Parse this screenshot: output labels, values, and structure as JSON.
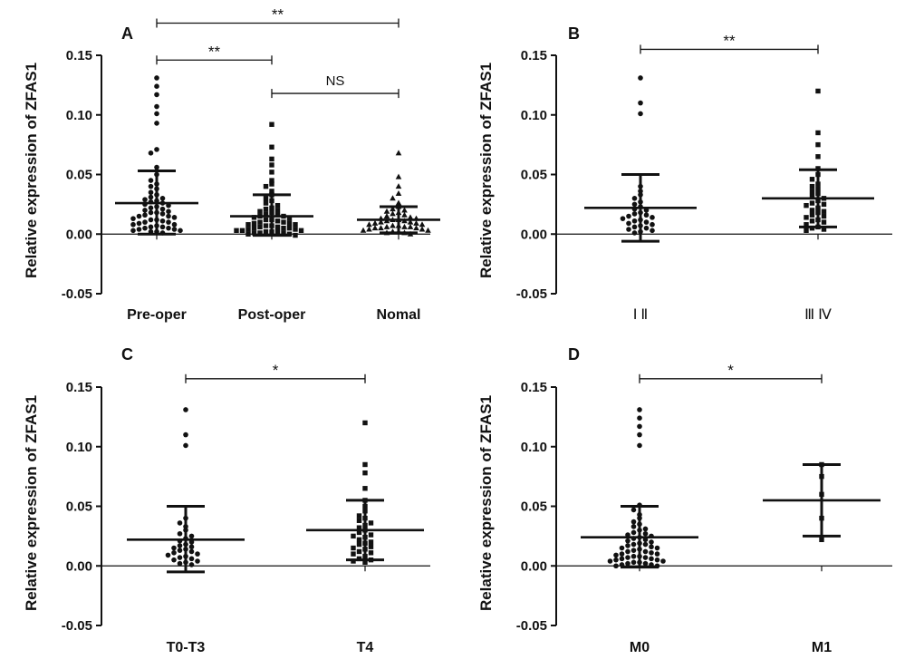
{
  "colors": {
    "ink": "#111111",
    "background": "#ffffff"
  },
  "chart_data": [
    {
      "panel": "A",
      "type": "scatter",
      "ylabel": "Relative expression of ZFAS1",
      "ylim": [
        -0.05,
        0.15
      ],
      "yticks": [
        -0.05,
        0.0,
        0.05,
        0.1,
        0.15
      ],
      "ytick_labels": [
        "-0.05",
        "0.00",
        "0.05",
        "0.10",
        "0.15"
      ],
      "groups": [
        {
          "label": "Pre-oper",
          "marker": "circle",
          "mean": 0.026,
          "err_low": 0.0,
          "err_high": 0.053,
          "values": [
            0.131,
            0.124,
            0.117,
            0.107,
            0.101,
            0.093,
            0.071,
            0.068,
            0.056,
            0.05,
            0.045,
            0.042,
            0.04,
            0.038,
            0.035,
            0.033,
            0.031,
            0.03,
            0.029,
            0.028,
            0.027,
            0.026,
            0.025,
            0.024,
            0.023,
            0.022,
            0.021,
            0.02,
            0.019,
            0.018,
            0.018,
            0.017,
            0.016,
            0.015,
            0.015,
            0.014,
            0.013,
            0.012,
            0.012,
            0.011,
            0.01,
            0.01,
            0.009,
            0.008,
            0.008,
            0.007,
            0.006,
            0.006,
            0.005,
            0.005,
            0.004,
            0.004,
            0.003,
            0.003,
            0.002,
            0.002,
            0.001
          ]
        },
        {
          "label": "Post-oper",
          "marker": "square",
          "mean": 0.015,
          "err_low": -0.001,
          "err_high": 0.033,
          "values": [
            0.092,
            0.073,
            0.063,
            0.058,
            0.052,
            0.045,
            0.042,
            0.04,
            0.036,
            0.033,
            0.03,
            0.028,
            0.026,
            0.024,
            0.022,
            0.021,
            0.02,
            0.019,
            0.018,
            0.017,
            0.016,
            0.015,
            0.015,
            0.014,
            0.013,
            0.012,
            0.012,
            0.011,
            0.01,
            0.01,
            0.009,
            0.009,
            0.008,
            0.008,
            0.007,
            0.007,
            0.006,
            0.006,
            0.005,
            0.005,
            0.005,
            0.004,
            0.004,
            0.003,
            0.003,
            0.003,
            0.002,
            0.002,
            0.002,
            0.001,
            0.001,
            0.001,
            0.0,
            0.0,
            -0.001
          ]
        },
        {
          "label": "Nomal",
          "marker": "triangle",
          "mean": 0.012,
          "err_low": 0.001,
          "err_high": 0.023,
          "values": [
            0.068,
            0.048,
            0.04,
            0.034,
            0.03,
            0.026,
            0.023,
            0.021,
            0.02,
            0.019,
            0.018,
            0.017,
            0.016,
            0.015,
            0.014,
            0.013,
            0.013,
            0.012,
            0.012,
            0.011,
            0.011,
            0.01,
            0.01,
            0.009,
            0.009,
            0.008,
            0.008,
            0.007,
            0.007,
            0.006,
            0.006,
            0.006,
            0.005,
            0.005,
            0.005,
            0.004,
            0.004,
            0.003,
            0.003,
            0.002,
            0.002,
            0.001,
            0.001,
            0.0
          ]
        }
      ],
      "significance": [
        {
          "from": 0,
          "to": 2,
          "y": 0.177,
          "label": "**"
        },
        {
          "from": 0,
          "to": 1,
          "y": 0.146,
          "label": "**"
        },
        {
          "from": 1,
          "to": 2,
          "y": 0.118,
          "label": "NS"
        }
      ]
    },
    {
      "panel": "B",
      "type": "scatter",
      "ylabel": "Relative expression of ZFAS1",
      "ylim": [
        -0.05,
        0.15
      ],
      "yticks": [
        -0.05,
        0.0,
        0.05,
        0.1,
        0.15
      ],
      "ytick_labels": [
        "-0.05",
        "0.00",
        "0.05",
        "0.10",
        "0.15"
      ],
      "groups": [
        {
          "label": "Ⅰ  Ⅱ",
          "marker": "circle",
          "roman": true,
          "mean": 0.022,
          "err_low": -0.006,
          "err_high": 0.05,
          "values": [
            0.131,
            0.11,
            0.101,
            0.04,
            0.036,
            0.033,
            0.03,
            0.027,
            0.025,
            0.023,
            0.021,
            0.02,
            0.018,
            0.017,
            0.016,
            0.015,
            0.014,
            0.013,
            0.012,
            0.011,
            0.01,
            0.009,
            0.008,
            0.007,
            0.006,
            0.005,
            0.004,
            0.003,
            0.002,
            0.001
          ]
        },
        {
          "label": "Ⅲ  Ⅳ",
          "marker": "square",
          "roman": true,
          "mean": 0.03,
          "err_low": 0.006,
          "err_high": 0.054,
          "values": [
            0.12,
            0.085,
            0.075,
            0.065,
            0.055,
            0.05,
            0.046,
            0.042,
            0.04,
            0.038,
            0.036,
            0.034,
            0.032,
            0.03,
            0.028,
            0.026,
            0.025,
            0.024,
            0.022,
            0.02,
            0.019,
            0.018,
            0.016,
            0.015,
            0.014,
            0.012,
            0.011,
            0.01,
            0.008,
            0.006,
            0.005,
            0.004,
            0.003
          ]
        }
      ],
      "significance": [
        {
          "from": 0,
          "to": 1,
          "y": 0.155,
          "label": "**"
        }
      ]
    },
    {
      "panel": "C",
      "type": "scatter",
      "ylabel": "Relative expression of ZFAS1",
      "ylim": [
        -0.05,
        0.15
      ],
      "yticks": [
        -0.05,
        0.0,
        0.05,
        0.1,
        0.15
      ],
      "ytick_labels": [
        "-0.05",
        "0.00",
        "0.05",
        "0.10",
        "0.15"
      ],
      "groups": [
        {
          "label": "T0-T3",
          "marker": "circle",
          "mean": 0.022,
          "err_low": -0.005,
          "err_high": 0.05,
          "values": [
            0.131,
            0.11,
            0.101,
            0.04,
            0.036,
            0.033,
            0.03,
            0.027,
            0.025,
            0.023,
            0.021,
            0.02,
            0.018,
            0.017,
            0.016,
            0.015,
            0.014,
            0.013,
            0.012,
            0.011,
            0.01,
            0.009,
            0.008,
            0.007,
            0.006,
            0.005,
            0.004,
            0.003,
            0.002,
            0.001
          ]
        },
        {
          "label": "T4",
          "marker": "square",
          "mean": 0.03,
          "err_low": 0.005,
          "err_high": 0.055,
          "values": [
            0.12,
            0.085,
            0.078,
            0.065,
            0.055,
            0.05,
            0.046,
            0.042,
            0.04,
            0.038,
            0.036,
            0.034,
            0.032,
            0.03,
            0.028,
            0.026,
            0.025,
            0.024,
            0.022,
            0.02,
            0.019,
            0.018,
            0.016,
            0.015,
            0.014,
            0.012,
            0.011,
            0.01,
            0.008,
            0.006,
            0.005,
            0.004,
            0.003
          ]
        }
      ],
      "significance": [
        {
          "from": 0,
          "to": 1,
          "y": 0.157,
          "label": "*"
        }
      ]
    },
    {
      "panel": "D",
      "type": "scatter",
      "ylabel": "Relative expression of ZFAS1",
      "ylim": [
        -0.05,
        0.15
      ],
      "yticks": [
        -0.05,
        0.0,
        0.05,
        0.1,
        0.15
      ],
      "ytick_labels": [
        "-0.05",
        "0.00",
        "0.05",
        "0.10",
        "0.15"
      ],
      "groups": [
        {
          "label": "M0",
          "marker": "circle",
          "mean": 0.024,
          "err_low": -0.001,
          "err_high": 0.05,
          "values": [
            0.131,
            0.124,
            0.117,
            0.11,
            0.101,
            0.051,
            0.047,
            0.043,
            0.04,
            0.037,
            0.035,
            0.033,
            0.031,
            0.03,
            0.028,
            0.027,
            0.026,
            0.025,
            0.024,
            0.023,
            0.022,
            0.021,
            0.02,
            0.019,
            0.018,
            0.018,
            0.017,
            0.016,
            0.015,
            0.015,
            0.014,
            0.013,
            0.012,
            0.012,
            0.011,
            0.01,
            0.01,
            0.009,
            0.008,
            0.008,
            0.007,
            0.007,
            0.006,
            0.006,
            0.005,
            0.005,
            0.004,
            0.004,
            0.003,
            0.003,
            0.002,
            0.002,
            0.001,
            0.001,
            0.0,
            0.0
          ]
        },
        {
          "label": "M1",
          "marker": "square",
          "mean": 0.055,
          "err_low": 0.025,
          "err_high": 0.085,
          "values": [
            0.085,
            0.075,
            0.06,
            0.04,
            0.022
          ]
        }
      ],
      "significance": [
        {
          "from": 0,
          "to": 1,
          "y": 0.157,
          "label": "*"
        }
      ]
    }
  ]
}
